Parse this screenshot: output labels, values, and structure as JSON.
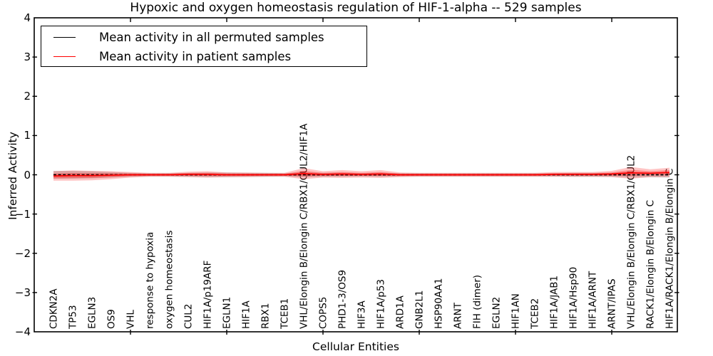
{
  "chart_data": {
    "type": "line",
    "title": "Hypoxic and oxygen homeostasis regulation of HIF-1-alpha -- 529 samples",
    "xlabel": "Cellular Entities",
    "ylabel": "Inferred Activity",
    "ylim": [
      -4,
      4
    ],
    "yticks": [
      4,
      3,
      2,
      1,
      0,
      -1,
      -2,
      -3,
      -4
    ],
    "grid": false,
    "legend_position": "upper left",
    "x_major_tick_indices": [
      4,
      9,
      14,
      19,
      24,
      29
    ],
    "categories": [
      "CDKN2A",
      "TP53",
      "EGLN3",
      "OS9",
      "VHL",
      "response to hypoxia",
      "oxygen homeostasis",
      "CUL2",
      "HIF1A/p19ARF",
      "EGLN1",
      "HIF1A",
      "RBX1",
      "TCEB1",
      "VHL/Elongin B/Elongin C/RBX1/CUL2/HIF1A",
      "COPS5",
      "PHD1-3/OS9",
      "HIF3A",
      "HIF1A/p53",
      "ARD1A",
      "GNB2L1",
      "HSP90AA1",
      "ARNT",
      "FIH (dimer)",
      "EGLN2",
      "HIF1AN",
      "TCEB2",
      "HIF1A/JAB1",
      "HIF1A/Hsp90",
      "HIF1A/ARNT",
      "ARNT/IPAS",
      "VHL/Elongin B/Elongin C/RBX1/CUL2",
      "RACK1/Elongin B/Elongin C",
      "HIF1A/RACK1/Elongin B/Elongin C"
    ],
    "series": [
      {
        "name": "Mean activity in all permuted samples",
        "color": "#000000",
        "style": "dashed",
        "band_color": "#999999",
        "values": [
          0,
          0,
          0,
          0,
          0,
          0,
          0,
          0,
          0,
          0,
          0,
          0,
          0,
          0,
          0,
          0,
          0,
          0,
          0,
          0,
          0,
          0,
          0,
          0,
          0,
          0,
          0,
          0,
          0,
          0,
          0,
          0,
          0
        ],
        "band": [
          0.1,
          0.1,
          0.09,
          0.07,
          0.05,
          0.04,
          0.04,
          0.05,
          0.06,
          0.06,
          0.05,
          0.05,
          0.04,
          0.06,
          0.05,
          0.05,
          0.04,
          0.05,
          0.04,
          0.04,
          0.04,
          0.04,
          0.04,
          0.04,
          0.04,
          0.04,
          0.04,
          0.05,
          0.05,
          0.05,
          0.07,
          0.06,
          0.07
        ]
      },
      {
        "name": "Mean activity in patient samples",
        "color": "#ff0000",
        "style": "solid",
        "band_color": "#ff3c3c",
        "values": [
          -0.03,
          -0.02,
          -0.02,
          -0.01,
          0,
          0,
          0,
          0.01,
          0.01,
          0,
          0,
          0,
          0,
          0.03,
          0.01,
          0.02,
          0.01,
          0.02,
          0,
          0,
          0,
          0,
          0,
          0,
          0,
          0,
          0.01,
          0.01,
          0.01,
          0.02,
          0.05,
          0.04,
          0.06
        ],
        "band": [
          0.12,
          0.13,
          0.12,
          0.1,
          0.07,
          0.05,
          0.05,
          0.07,
          0.08,
          0.06,
          0.06,
          0.05,
          0.05,
          0.14,
          0.08,
          0.1,
          0.08,
          0.1,
          0.06,
          0.05,
          0.05,
          0.05,
          0.05,
          0.05,
          0.05,
          0.05,
          0.06,
          0.06,
          0.06,
          0.08,
          0.15,
          0.1,
          0.12
        ]
      }
    ]
  }
}
